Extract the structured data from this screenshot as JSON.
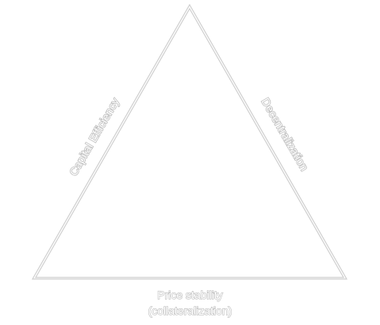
{
  "diagram": {
    "left_side_label": "Capital Efficiency",
    "right_side_label": "Decentralization",
    "base_label_line1": "Price stability",
    "base_label_line2": "(collateralization)"
  },
  "colors": {
    "outline": "#c8c8c8",
    "text_outline": "#bdbdbd",
    "background": "#ffffff"
  }
}
